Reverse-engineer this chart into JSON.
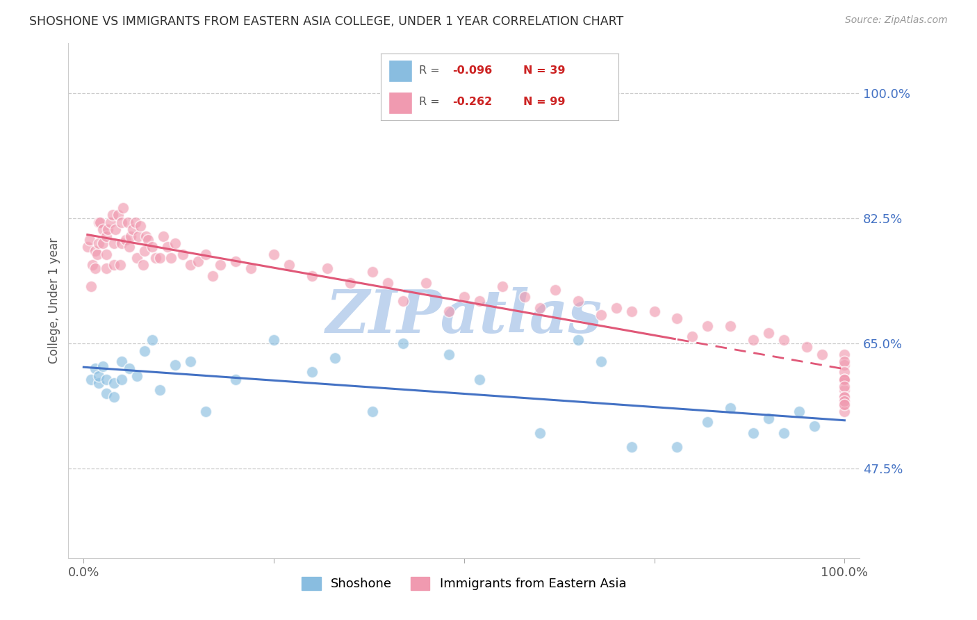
{
  "title": "SHOSHONE VS IMMIGRANTS FROM EASTERN ASIA COLLEGE, UNDER 1 YEAR CORRELATION CHART",
  "source": "Source: ZipAtlas.com",
  "ylabel": "College, Under 1 year",
  "xlim": [
    -0.02,
    1.02
  ],
  "ylim": [
    0.35,
    1.07
  ],
  "ytick_vals": [
    0.475,
    0.65,
    0.825,
    1.0
  ],
  "ytick_labels": [
    "47.5%",
    "65.0%",
    "82.5%",
    "100.0%"
  ],
  "xtick_vals": [
    0.0,
    0.25,
    0.5,
    0.75,
    1.0
  ],
  "xtick_labels": [
    "0.0%",
    "",
    "",
    "",
    "100.0%"
  ],
  "shoshone_color": "#89bde0",
  "eastern_asia_color": "#f09ab0",
  "line_blue": "#4472c4",
  "line_pink": "#e05878",
  "watermark_color": "#c0d4ee",
  "title_color": "#303030",
  "tick_color_right": "#4472c4",
  "grid_color": "#cccccc",
  "background": "#ffffff",
  "legend_r1": "-0.096",
  "legend_n1": "39",
  "legend_r2": "-0.262",
  "legend_n2": "99",
  "shoshone_x": [
    0.01,
    0.015,
    0.02,
    0.02,
    0.025,
    0.03,
    0.03,
    0.04,
    0.04,
    0.05,
    0.05,
    0.06,
    0.07,
    0.08,
    0.09,
    0.1,
    0.12,
    0.14,
    0.16,
    0.2,
    0.25,
    0.3,
    0.33,
    0.38,
    0.42,
    0.48,
    0.52,
    0.6,
    0.65,
    0.68,
    0.72,
    0.78,
    0.82,
    0.85,
    0.88,
    0.9,
    0.92,
    0.94,
    0.96
  ],
  "shoshone_y": [
    0.6,
    0.615,
    0.595,
    0.605,
    0.618,
    0.58,
    0.6,
    0.575,
    0.595,
    0.6,
    0.625,
    0.615,
    0.605,
    0.64,
    0.655,
    0.585,
    0.62,
    0.625,
    0.555,
    0.6,
    0.655,
    0.61,
    0.63,
    0.555,
    0.65,
    0.635,
    0.6,
    0.525,
    0.655,
    0.625,
    0.505,
    0.505,
    0.54,
    0.56,
    0.525,
    0.545,
    0.525,
    0.555,
    0.535
  ],
  "eastern_asia_x": [
    0.005,
    0.008,
    0.01,
    0.012,
    0.015,
    0.015,
    0.018,
    0.02,
    0.02,
    0.022,
    0.025,
    0.025,
    0.03,
    0.03,
    0.03,
    0.032,
    0.035,
    0.038,
    0.04,
    0.04,
    0.042,
    0.045,
    0.048,
    0.05,
    0.05,
    0.052,
    0.055,
    0.058,
    0.06,
    0.062,
    0.065,
    0.068,
    0.07,
    0.072,
    0.075,
    0.078,
    0.08,
    0.082,
    0.085,
    0.09,
    0.095,
    0.1,
    0.105,
    0.11,
    0.115,
    0.12,
    0.13,
    0.14,
    0.15,
    0.16,
    0.17,
    0.18,
    0.2,
    0.22,
    0.25,
    0.27,
    0.3,
    0.32,
    0.35,
    0.38,
    0.4,
    0.42,
    0.45,
    0.48,
    0.5,
    0.52,
    0.55,
    0.58,
    0.6,
    0.62,
    0.65,
    0.68,
    0.7,
    0.72,
    0.75,
    0.78,
    0.8,
    0.82,
    0.85,
    0.88,
    0.9,
    0.92,
    0.95,
    0.97,
    1.0,
    1.0,
    1.0,
    1.0,
    1.0,
    1.0,
    1.0,
    1.0,
    1.0,
    1.0,
    1.0,
    1.0,
    1.0,
    1.0,
    1.0
  ],
  "eastern_asia_y": [
    0.785,
    0.795,
    0.73,
    0.76,
    0.755,
    0.78,
    0.775,
    0.79,
    0.82,
    0.82,
    0.79,
    0.81,
    0.755,
    0.775,
    0.8,
    0.81,
    0.82,
    0.83,
    0.76,
    0.79,
    0.81,
    0.83,
    0.76,
    0.79,
    0.82,
    0.84,
    0.795,
    0.82,
    0.785,
    0.8,
    0.81,
    0.82,
    0.77,
    0.8,
    0.815,
    0.76,
    0.78,
    0.8,
    0.795,
    0.785,
    0.77,
    0.77,
    0.8,
    0.785,
    0.77,
    0.79,
    0.775,
    0.76,
    0.765,
    0.775,
    0.745,
    0.76,
    0.765,
    0.755,
    0.775,
    0.76,
    0.745,
    0.755,
    0.735,
    0.75,
    0.735,
    0.71,
    0.735,
    0.695,
    0.715,
    0.71,
    0.73,
    0.715,
    0.7,
    0.725,
    0.71,
    0.69,
    0.7,
    0.695,
    0.695,
    0.685,
    0.66,
    0.675,
    0.675,
    0.655,
    0.665,
    0.655,
    0.645,
    0.635,
    0.635,
    0.62,
    0.6,
    0.625,
    0.61,
    0.6,
    0.585,
    0.6,
    0.575,
    0.59,
    0.575,
    0.565,
    0.555,
    0.57,
    0.565
  ]
}
